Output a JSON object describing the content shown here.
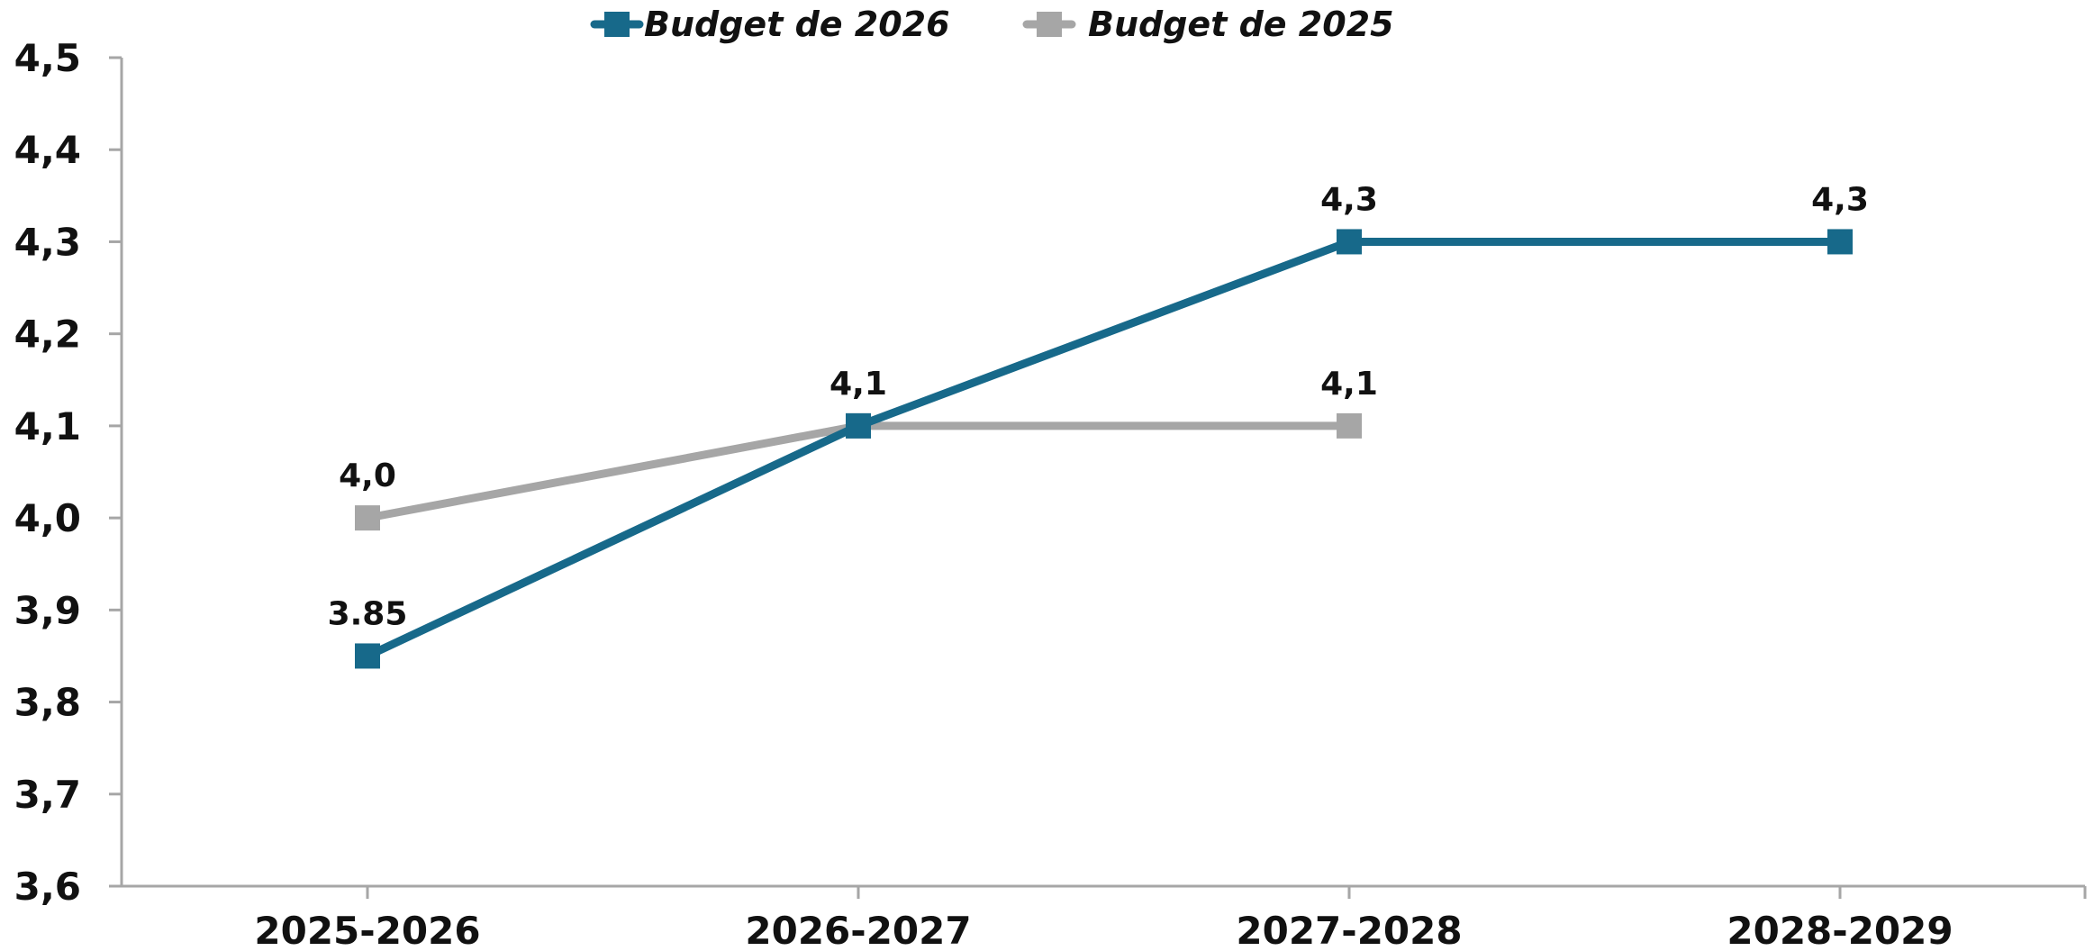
{
  "chart_data": {
    "type": "line",
    "categories": [
      "2025-2026",
      "2026-2027",
      "2027-2028",
      "2028-2029"
    ],
    "series": [
      {
        "name": "Budget de 2026",
        "values": [
          3.85,
          4.1,
          4.3,
          4.3
        ],
        "labels": [
          "3.85",
          "4,1",
          "4,3",
          "4,3"
        ],
        "color": "#17698a"
      },
      {
        "name": "Budget de 2025",
        "values": [
          4.0,
          4.1,
          4.1,
          null
        ],
        "labels": [
          "4,0",
          "4,1",
          "4,1",
          null
        ],
        "color": "#a6a6a6"
      }
    ],
    "ylim": [
      3.6,
      4.5
    ],
    "yticks": [
      3.6,
      3.7,
      3.8,
      3.9,
      4.0,
      4.1,
      4.2,
      4.3,
      4.4,
      4.5
    ],
    "ytick_labels": [
      "3,6",
      "3,7",
      "3,8",
      "3,9",
      "4,0",
      "4,1",
      "4,2",
      "4,3",
      "4,4",
      "4,5"
    ],
    "title": "",
    "xlabel": "",
    "ylabel": "",
    "grid": false,
    "legend_position": "top-center",
    "axis_color": "#a6a6a6"
  }
}
